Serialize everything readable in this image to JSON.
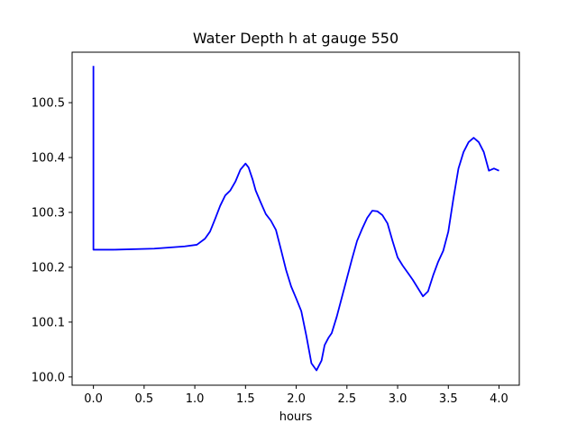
{
  "chart_data": {
    "type": "line",
    "title": "Water Depth h at gauge 550",
    "xlabel": "hours",
    "ylabel": "",
    "xlim": [
      -0.21,
      4.2
    ],
    "ylim": [
      99.985,
      100.592
    ],
    "xticks": [
      0.0,
      0.5,
      1.0,
      1.5,
      2.0,
      2.5,
      3.0,
      3.5,
      4.0
    ],
    "xtick_labels": [
      "0.0",
      "0.5",
      "1.0",
      "1.5",
      "2.0",
      "2.5",
      "3.0",
      "3.5",
      "4.0"
    ],
    "yticks": [
      100.0,
      100.1,
      100.2,
      100.3,
      100.4,
      100.5
    ],
    "ytick_labels": [
      "100.0",
      "100.1",
      "100.2",
      "100.3",
      "100.4",
      "100.5"
    ],
    "grid": false,
    "series": [
      {
        "color": "#0000ff",
        "x": [
          0.0,
          0.0,
          0.0,
          0.2,
          0.6,
          0.9,
          1.02,
          1.1,
          1.15,
          1.2,
          1.25,
          1.3,
          1.35,
          1.4,
          1.45,
          1.5,
          1.53,
          1.57,
          1.6,
          1.65,
          1.7,
          1.75,
          1.8,
          1.85,
          1.9,
          1.95,
          2.0,
          2.05,
          2.1,
          2.15,
          2.2,
          2.25,
          2.28,
          2.32,
          2.35,
          2.4,
          2.45,
          2.5,
          2.55,
          2.6,
          2.65,
          2.7,
          2.75,
          2.8,
          2.85,
          2.9,
          2.95,
          3.0,
          3.05,
          3.1,
          3.15,
          3.2,
          3.25,
          3.3,
          3.35,
          3.4,
          3.45,
          3.5,
          3.55,
          3.6,
          3.65,
          3.7,
          3.75,
          3.8,
          3.85,
          3.9,
          3.95,
          4.0
        ],
        "y": [
          100.567,
          100.48,
          100.232,
          100.232,
          100.234,
          100.238,
          100.241,
          100.252,
          100.265,
          100.288,
          100.312,
          100.331,
          100.34,
          100.356,
          100.378,
          100.389,
          100.382,
          100.36,
          100.34,
          100.318,
          100.297,
          100.285,
          100.268,
          100.232,
          100.195,
          100.165,
          100.143,
          100.12,
          100.075,
          100.025,
          100.012,
          100.03,
          100.058,
          100.072,
          100.08,
          100.11,
          100.145,
          100.18,
          100.215,
          100.248,
          100.27,
          100.29,
          100.303,
          100.302,
          100.295,
          100.28,
          100.248,
          100.218,
          100.203,
          100.19,
          100.177,
          100.162,
          100.147,
          100.156,
          100.185,
          100.21,
          100.23,
          100.265,
          100.325,
          100.38,
          100.41,
          100.428,
          100.436,
          100.428,
          100.41,
          100.376,
          100.38,
          100.376
        ]
      }
    ]
  }
}
